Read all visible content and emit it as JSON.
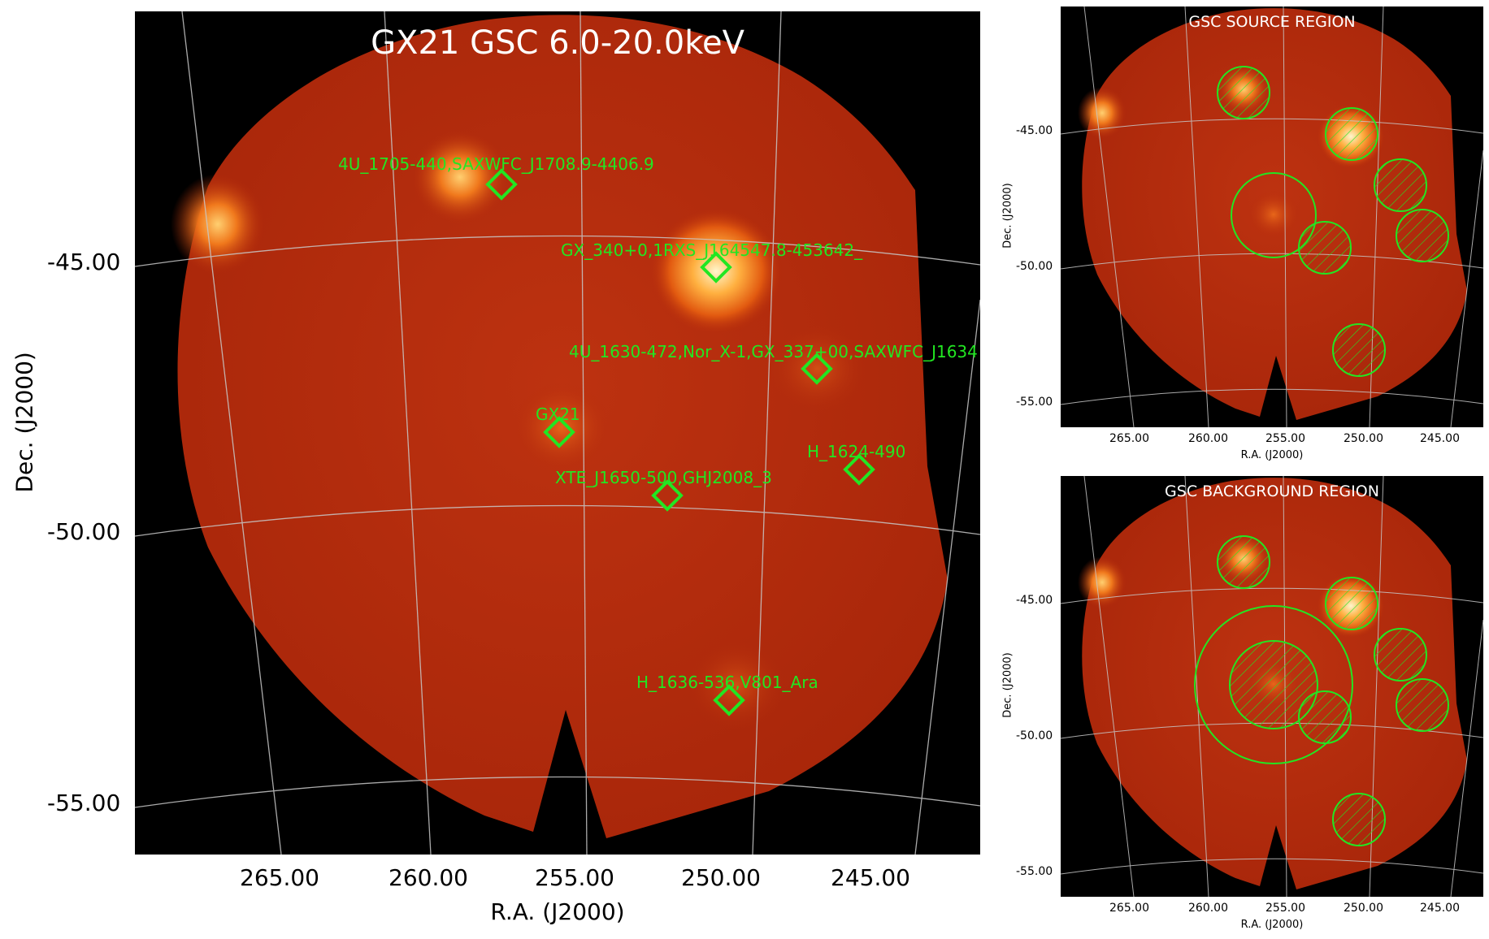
{
  "main": {
    "title": "GX21 GSC 6.0-20.0keV",
    "xlabel": "R.A. (J2000)",
    "ylabel": "Dec. (J2000)",
    "xticks": [
      "265.00",
      "260.00",
      "255.00",
      "250.00",
      "245.00"
    ],
    "yticks": [
      "-45.00",
      "-50.00",
      "-55.00"
    ],
    "sources": [
      {
        "label": "4U_1705-440,SAXWFC_J1708.9-4406.9"
      },
      {
        "label": "GX_340+0,1RXS_J164547.8-453642_"
      },
      {
        "label": "4U_1630-472,Nor_X-1,GX_337+00,SAXWFC_J1634"
      },
      {
        "label": "GX21"
      },
      {
        "label": "H_1624-490"
      },
      {
        "label": "XTE_J1650-500,GHJ2008_3"
      },
      {
        "label": "H_1636-536,V801_Ara"
      }
    ]
  },
  "source_region": {
    "title": "GSC SOURCE REGION",
    "xlabel": "R.A. (J2000)",
    "ylabel": "Dec. (J2000)",
    "xticks": [
      "265.00",
      "260.00",
      "255.00",
      "250.00",
      "245.00"
    ],
    "yticks": [
      "-45.00",
      "-50.00",
      "-55.00"
    ]
  },
  "background_region": {
    "title": "GSC BACKGROUND REGION",
    "xlabel": "R.A. (J2000)",
    "ylabel": "Dec. (J2000)",
    "xticks": [
      "265.00",
      "260.00",
      "255.00",
      "250.00",
      "245.00"
    ],
    "yticks": [
      "-45.00",
      "-50.00",
      "-55.00"
    ]
  },
  "colors": {
    "marker": "#22e622",
    "sky": "#b52a0a",
    "grid": "#c8c8c8"
  }
}
